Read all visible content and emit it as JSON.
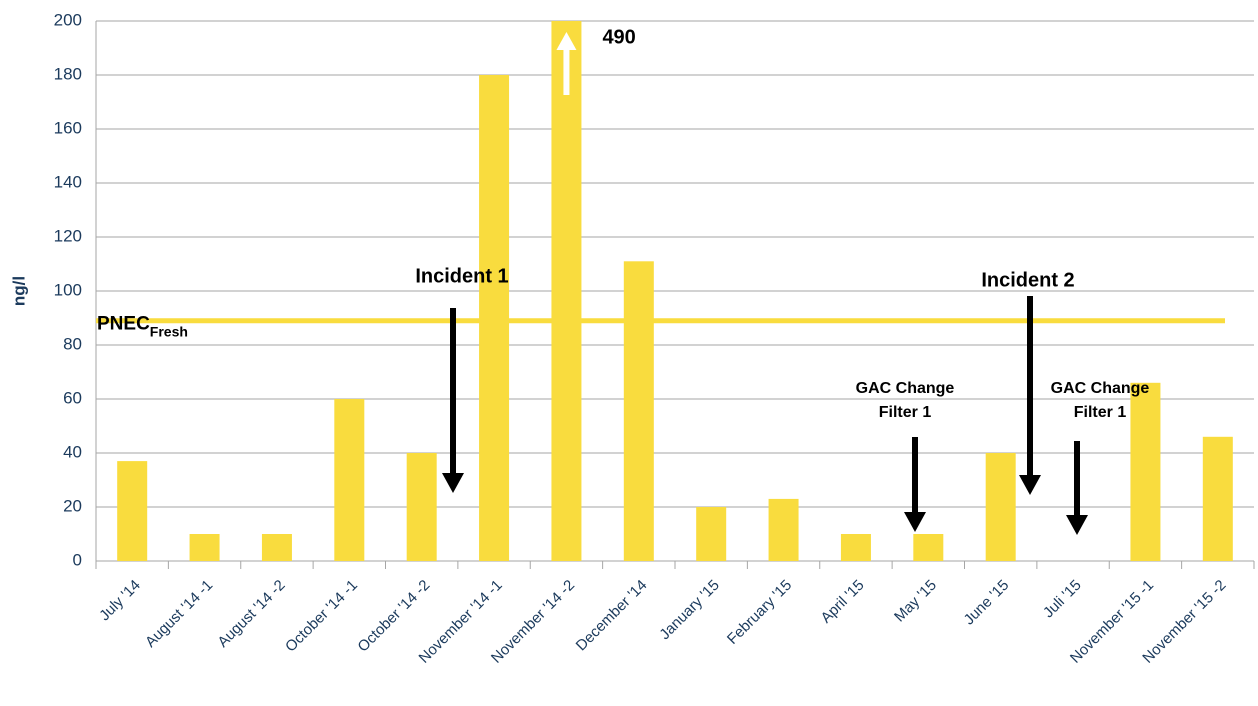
{
  "chart_data": {
    "type": "bar",
    "y_label": "ng/l",
    "categories": [
      "July '14",
      "August '14 -1",
      "August '14 -2",
      "October '14 -1",
      "October '14 -2",
      "November '14 -1",
      "November '14 -2",
      "December '14",
      "January '15",
      "February '15",
      "April '15",
      "May '15",
      "June '15",
      "Juli '15",
      "November '15 -1",
      "November '15 -2"
    ],
    "values": [
      37,
      10,
      10,
      60,
      40,
      180,
      490,
      111,
      20,
      23,
      10,
      10,
      40,
      null,
      66,
      46
    ],
    "value_labels": [
      null,
      null,
      null,
      null,
      null,
      null,
      "490",
      null,
      null,
      null,
      null,
      null,
      null,
      null,
      null,
      null
    ],
    "color": "#f9dc3e",
    "ylim": [
      0,
      200
    ],
    "yticks": [
      0,
      20,
      40,
      60,
      80,
      100,
      120,
      140,
      160,
      180,
      200
    ],
    "grid": true,
    "reference_line": {
      "label": "PNEC",
      "subscript": "Fresh",
      "value": 89,
      "color": "#f9dc3e"
    },
    "annotations": [
      {
        "lines": [
          "Incident 1"
        ]
      },
      {
        "lines": [
          "Incident 2"
        ]
      },
      {
        "lines": [
          "GAC Change",
          "Filter 1"
        ]
      },
      {
        "lines": [
          "GAC Change",
          "Filter 1"
        ]
      }
    ]
  }
}
